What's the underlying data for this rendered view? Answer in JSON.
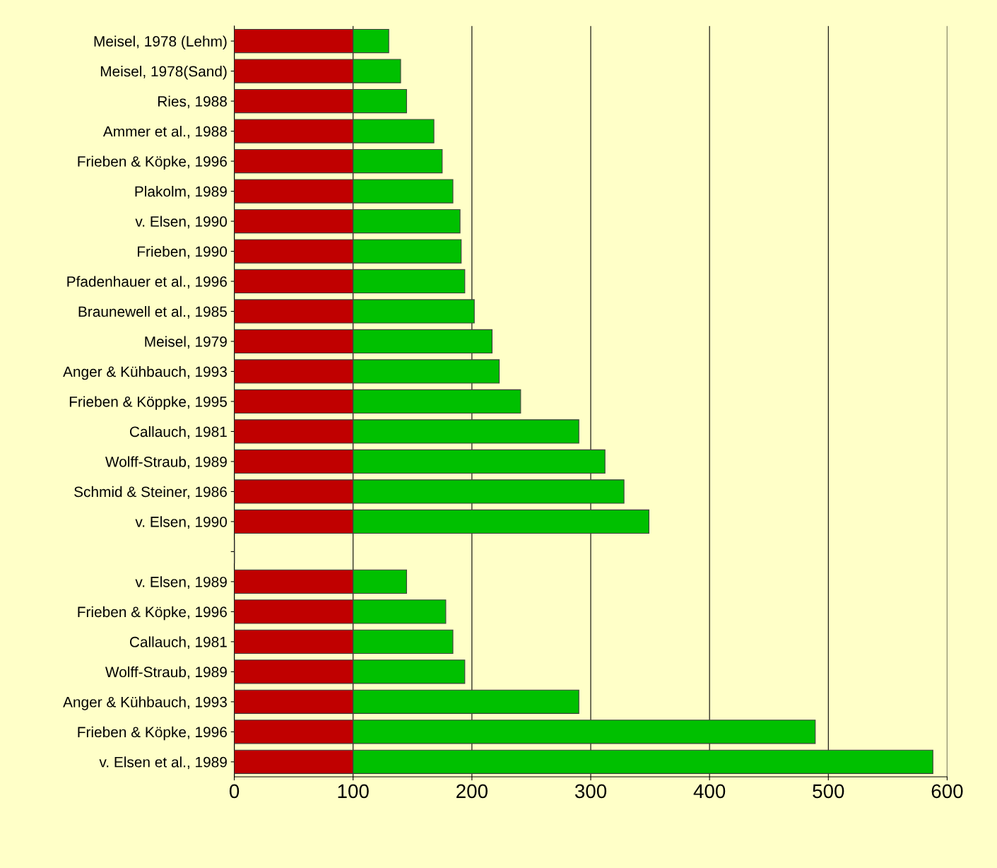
{
  "chart_data": {
    "type": "bar",
    "orientation": "horizontal",
    "stacked": true,
    "categories": [
      "Meisel, 1978 (Lehm)",
      "Meisel, 1978(Sand)",
      "Ries, 1988",
      "Ammer et al., 1988",
      "Frieben & Köpke, 1996",
      "Plakolm, 1989",
      "v. Elsen, 1990",
      "Frieben, 1990",
      "Pfadenhauer et al., 1996",
      "Braunewell et al., 1985",
      "Meisel, 1979",
      "Anger & Kühbauch, 1993",
      "Frieben & Köppke, 1995",
      "Callauch, 1981",
      "Wolff-Straub, 1989",
      "Schmid & Steiner, 1986",
      "v. Elsen, 1990",
      null,
      "v. Elsen, 1989",
      "Frieben & Köpke, 1996",
      "Callauch, 1981",
      "Wolff-Straub, 1989",
      "Anger & Kühbauch, 1993",
      "Frieben & Köpke, 1996",
      "v. Elsen et al., 1989"
    ],
    "series": [
      {
        "color": "#c00000",
        "values": [
          100,
          100,
          100,
          100,
          100,
          100,
          100,
          100,
          100,
          100,
          100,
          100,
          100,
          100,
          100,
          100,
          100,
          null,
          100,
          100,
          100,
          100,
          100,
          100,
          100
        ]
      },
      {
        "color": "#00c000",
        "values": [
          30,
          40,
          45,
          68,
          75,
          84,
          90,
          91,
          94,
          102,
          117,
          123,
          141,
          190,
          212,
          228,
          249,
          null,
          45,
          78,
          84,
          94,
          190,
          389,
          488
        ]
      }
    ],
    "xlim": [
      0,
      600
    ],
    "xticks": [
      0,
      100,
      200,
      300,
      400,
      500,
      600
    ],
    "grid": "x"
  }
}
